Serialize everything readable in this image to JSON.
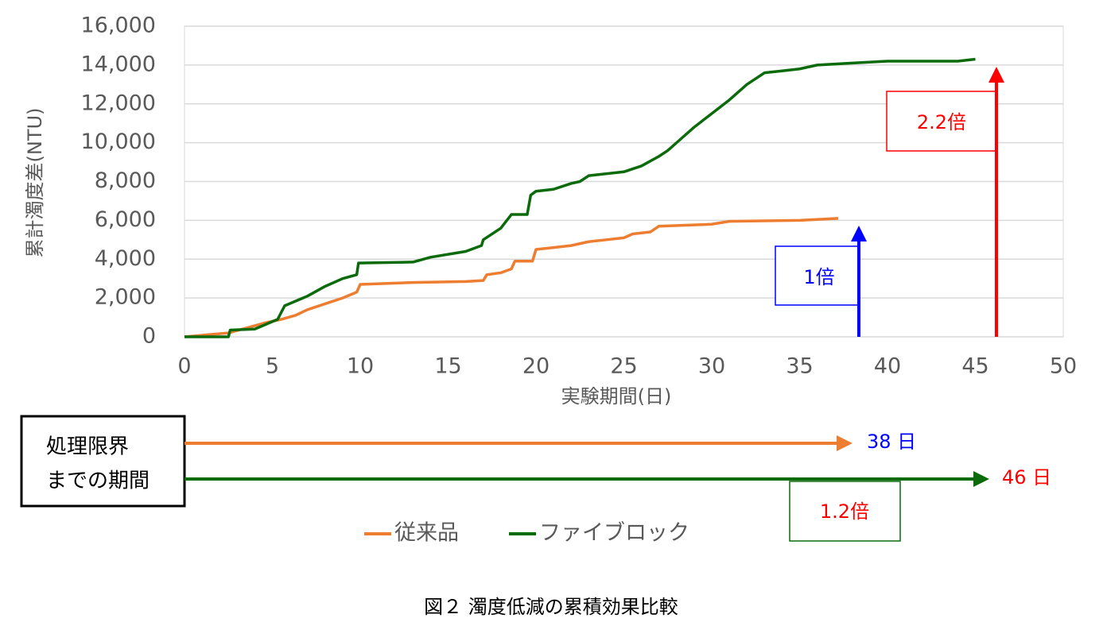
{
  "chart_data": {
    "type": "line",
    "y_label": "累計濁度差(NTU)",
    "x_label": "実験期間(日)",
    "xlim": [
      0,
      50
    ],
    "xticks": [
      0,
      5,
      10,
      15,
      20,
      25,
      30,
      35,
      40,
      45,
      50
    ],
    "ylim": [
      0,
      16000
    ],
    "yticks": [
      0,
      {
        "value": 2000,
        "label": "2,000"
      },
      {
        "value": 4000,
        "label": "4,000"
      },
      {
        "value": 6000,
        "label": "6,000"
      },
      {
        "value": 8000,
        "label": "8,000"
      },
      {
        "value": 10000,
        "label": "10,000"
      },
      {
        "value": 12000,
        "label": "12,000"
      },
      {
        "value": 14000,
        "label": "14,000"
      },
      {
        "value": 16000,
        "label": "16,000"
      }
    ],
    "grid": true,
    "series": [
      {
        "name": "従来品",
        "color": "#ed7d31",
        "x": [
          0,
          2.5,
          3.5,
          4.5,
          5.5,
          6.3,
          7,
          8,
          9,
          9.8,
          10,
          13,
          16,
          17,
          17.2,
          18,
          18.6,
          18.8,
          19.8,
          20,
          21,
          22,
          23,
          24,
          25,
          25.5,
          26.5,
          27,
          30,
          31,
          35,
          37.2
        ],
        "values": [
          0,
          200,
          450,
          700,
          900,
          1100,
          1400,
          1700,
          2000,
          2300,
          2700,
          2800,
          2850,
          2900,
          3200,
          3300,
          3500,
          3900,
          3900,
          4500,
          4600,
          4700,
          4900,
          5000,
          5100,
          5300,
          5400,
          5700,
          5800,
          5950,
          6000,
          6100
        ]
      },
      {
        "name": "ファイブロック",
        "color": "#0b6b0b",
        "x": [
          0,
          2.5,
          2.6,
          4,
          5.3,
          5.7,
          7,
          8,
          9,
          9.8,
          9.9,
          13,
          14,
          16,
          16.9,
          17,
          18,
          18.6,
          19.5,
          19.7,
          20,
          21,
          22,
          22.5,
          23,
          25,
          26,
          27,
          27.5,
          28,
          29,
          30,
          31,
          32,
          33,
          34,
          35,
          36,
          38,
          40,
          44,
          45
        ],
        "values": [
          0,
          0,
          350,
          400,
          900,
          1600,
          2100,
          2600,
          3000,
          3200,
          3800,
          3850,
          4100,
          4400,
          4700,
          5000,
          5600,
          6300,
          6300,
          7300,
          7500,
          7600,
          7900,
          8000,
          8300,
          8500,
          8800,
          9300,
          9600,
          10000,
          10800,
          11500,
          12200,
          13000,
          13600,
          13700,
          13800,
          14000,
          14100,
          14200,
          14200,
          14300
        ]
      }
    ]
  },
  "annotations": {
    "ratio_conventional": "1倍",
    "ratio_fiblock": "2.2倍",
    "period_label": [
      "処理限界",
      "までの期間"
    ],
    "days_conventional": "38 日",
    "days_fiblock": "46 日",
    "period_ratio": "1.2倍"
  },
  "caption": "図２ 濁度低減の累積効果比較"
}
